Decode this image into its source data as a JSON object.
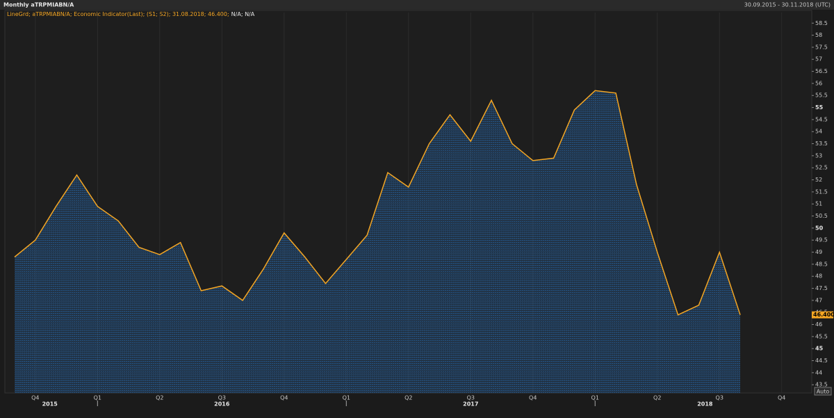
{
  "header": {
    "title": "Monthly aTRPMIABN/A",
    "range": "30.09.2015 - 30.11.2018 (UTC)"
  },
  "legend": {
    "text": "LineGrd; aTRPMIABN/A; Economic Indicator(Last); (S1; S2); 31.08.2018; 46.400;",
    "extra": "N/A; N/A"
  },
  "auto_button": "Auto",
  "chart_data": {
    "type": "area",
    "categories": [
      null,
      "Q4",
      null,
      null,
      "Q1",
      null,
      null,
      "Q2",
      null,
      null,
      "Q3",
      null,
      null,
      "Q4",
      null,
      null,
      "Q1",
      null,
      null,
      "Q2",
      null,
      null,
      "Q3",
      null,
      null,
      "Q4",
      null,
      null,
      "Q1",
      null,
      null,
      "Q2",
      null,
      null,
      "Q3",
      null,
      null,
      "Q4"
    ],
    "year_labels": [
      "2015",
      "2016",
      "2017",
      "2018"
    ],
    "series": [
      {
        "name": "aTRPMIABN/A",
        "color": "#f5a623",
        "values": [
          48.8,
          49.5,
          50.9,
          52.2,
          50.9,
          50.3,
          49.2,
          48.9,
          49.4,
          47.4,
          47.6,
          47.0,
          48.3,
          49.8,
          48.8,
          47.7,
          48.7,
          49.7,
          52.3,
          51.7,
          53.5,
          54.7,
          53.6,
          55.3,
          53.5,
          52.8,
          52.9,
          54.9,
          55.7,
          55.6,
          51.8,
          49.0,
          46.4,
          46.8,
          49.0,
          46.4,
          null,
          null
        ],
        "value_labels": [
          null,
          null,
          null,
          null,
          null,
          null,
          null,
          null,
          null,
          null,
          null,
          null,
          null,
          null,
          null,
          null,
          null,
          null,
          null,
          null,
          null,
          null,
          null,
          null,
          null,
          null,
          null,
          null,
          null,
          null,
          null,
          null,
          null,
          null,
          null,
          "46.400",
          null,
          null
        ]
      }
    ],
    "ylim": [
      43.16,
      58.94
    ],
    "yticks": [
      43.5,
      44,
      44.5,
      45,
      45.5,
      46,
      46.5,
      47,
      47.5,
      48,
      48.5,
      49,
      49.5,
      50,
      50.5,
      51,
      51.5,
      52,
      52.5,
      53,
      53.5,
      54,
      54.5,
      55,
      55.5,
      56,
      56.5,
      57,
      57.5,
      58,
      58.5
    ],
    "grid": true
  }
}
